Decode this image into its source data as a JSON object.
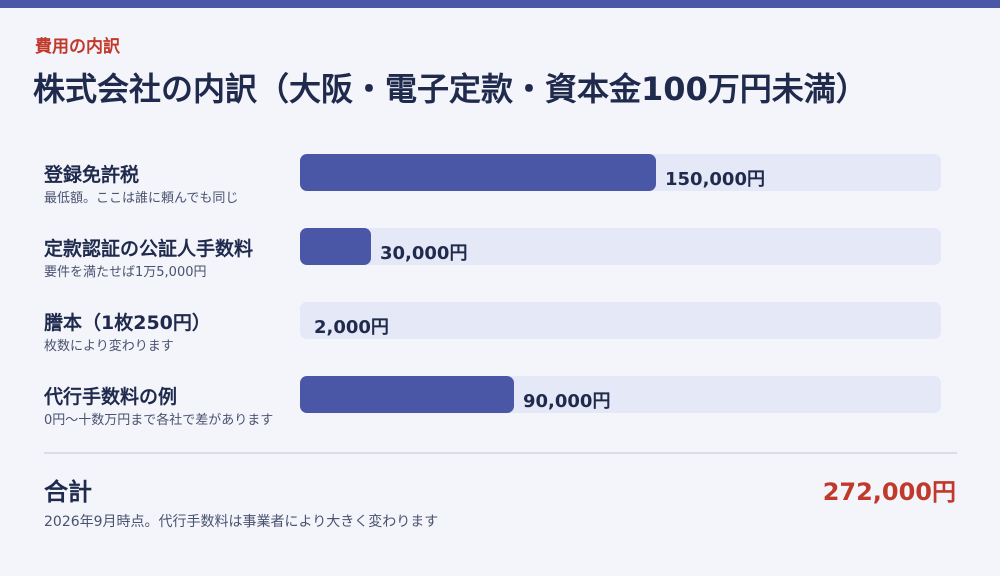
{
  "header": {
    "eyebrow": "費用の内訳",
    "title": "株式会社の内訳（大阪・電子定款・資本金100万円未満）"
  },
  "colors": {
    "accent": "#4a57a6",
    "track": "#e4e8f7",
    "highlight": "#c0392b",
    "text": "#1f2a4d"
  },
  "chart_data": {
    "type": "bar",
    "orientation": "horizontal",
    "categories": [
      "登録免許税",
      "定款認証の公証人手数料",
      "謄本（1枚250円）",
      "代行手数料の例"
    ],
    "notes": [
      "最低額。ここは誰に頼んでも同じ",
      "要件を満たせば1万5,000円",
      "枚数により変わります",
      "0円〜十数万円まで各社で差があります"
    ],
    "values": [
      150000,
      30000,
      2000,
      90000
    ],
    "value_labels": [
      "150,000円",
      "30,000円",
      "2,000円",
      "90,000円"
    ],
    "xlim": [
      0,
      270000
    ],
    "grid": false,
    "legend": "none"
  },
  "total": {
    "label": "合計",
    "value": "272,000円"
  },
  "footnote": "2026年9月時点。代行手数料は事業者により大きく変わります"
}
